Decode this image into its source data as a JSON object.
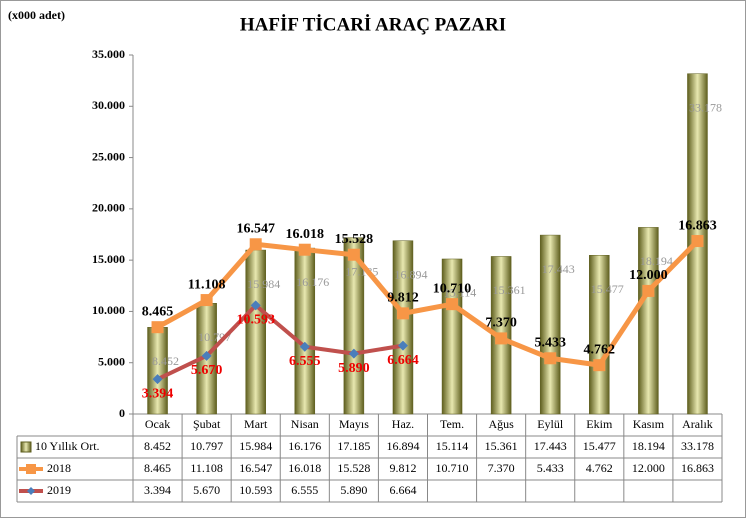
{
  "chart_data": {
    "type": "bar-line",
    "title": "HAFİF TİCARİ ARAÇ PAZARI",
    "y_label": "(x000 adet)",
    "categories": [
      "Ocak",
      "Şubat",
      "Mart",
      "Nisan",
      "Mayıs",
      "Haz.",
      "Tem.",
      "Ağus",
      "Eylül",
      "Ekim",
      "Kasım",
      "Aralık"
    ],
    "ylim": [
      0,
      35000
    ],
    "yticks": [
      0,
      {
        "value": 5000,
        "label": "5.000"
      },
      {
        "value": 10000,
        "label": "10.000"
      },
      {
        "value": 15000,
        "label": "15.000"
      },
      {
        "value": 20000,
        "label": "20.000"
      },
      {
        "value": 25000,
        "label": "25.000"
      },
      {
        "value": 30000,
        "label": "30.000"
      },
      {
        "value": 35000,
        "label": "35.000"
      }
    ],
    "series": [
      {
        "name": "10 Yıllık Ort.",
        "type": "bar",
        "color": "#8c8c33",
        "values": [
          8452,
          10797,
          15984,
          16176,
          17185,
          16894,
          15114,
          15361,
          17443,
          15477,
          18194,
          33178
        ],
        "value_labels": [
          "8.452",
          "10.797",
          "15.984",
          "16.176",
          "17.185",
          "16.894",
          "15.114",
          "15.361",
          "17.443",
          "15.477",
          "18.194",
          "33.178"
        ]
      },
      {
        "name": "2018",
        "type": "line",
        "color": "#f79646",
        "values": [
          8465,
          11108,
          16547,
          16018,
          15528,
          9812,
          10710,
          7370,
          5433,
          4762,
          12000,
          16863
        ],
        "value_labels": [
          "8.465",
          "11.108",
          "16.547",
          "16.018",
          "15.528",
          "9.812",
          "10.710",
          "7.370",
          "5.433",
          "4.762",
          "12.000",
          "16.863"
        ]
      },
      {
        "name": "2019",
        "type": "line",
        "color": "#c0504d",
        "values": [
          3394,
          5670,
          10593,
          6555,
          5890,
          6664,
          null,
          null,
          null,
          null,
          null,
          null
        ],
        "value_labels": [
          "3.394",
          "5.670",
          "10.593",
          "6.555",
          "5.890",
          "6.664",
          null,
          null,
          null,
          null,
          null,
          null
        ]
      }
    ]
  }
}
